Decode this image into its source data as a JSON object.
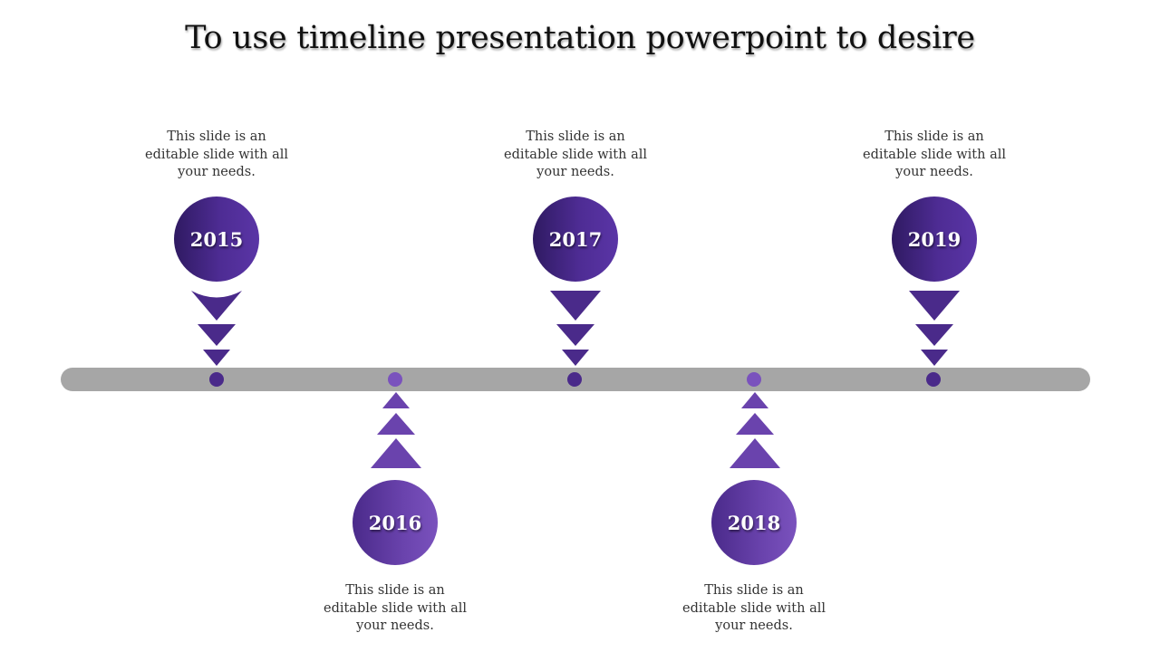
{
  "title": "To use timeline presentation powerpoint to desire",
  "colors": {
    "bar": "#a6a6a6",
    "top_accent": "#3f2382",
    "bottom_accent": "#6a43ad"
  },
  "milestones": [
    {
      "year": "2015",
      "caption": "This slide is an editable slide with all your needs.",
      "position": "top"
    },
    {
      "year": "2016",
      "caption": "This slide is an editable slide with all your needs.",
      "position": "bottom"
    },
    {
      "year": "2017",
      "caption": "This slide is an editable slide with all your needs.",
      "position": "top"
    },
    {
      "year": "2018",
      "caption": "This slide is an editable slide with all your needs.",
      "position": "bottom"
    },
    {
      "year": "2019",
      "caption": "This slide is an editable slide with all your needs.",
      "position": "top"
    }
  ]
}
